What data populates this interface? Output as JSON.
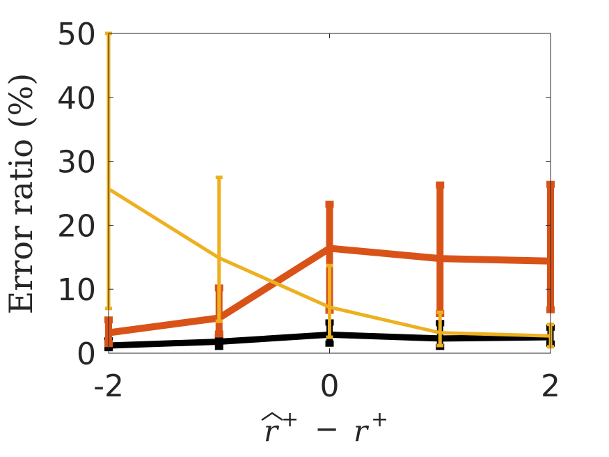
{
  "chart_data": {
    "type": "line",
    "title": "",
    "xlabel": "r̂⁺ − r⁺",
    "xlabel_parts": {
      "hat_var": "r",
      "sup": "+",
      "op": "−",
      "var": "r"
    },
    "ylabel": "Error ratio (%)",
    "xlim": [
      -2,
      2
    ],
    "ylim": [
      0,
      50
    ],
    "xticks": [
      -2,
      0,
      2
    ],
    "xtick_labels": [
      "-2",
      "0",
      "2"
    ],
    "yticks": [
      0,
      10,
      20,
      30,
      40,
      50
    ],
    "ytick_labels": [
      "0",
      "10",
      "20",
      "30",
      "40",
      "50"
    ],
    "grid": false,
    "x": [
      -2,
      -1,
      0,
      1,
      2
    ],
    "series": [
      {
        "color": "#000000",
        "values": [
          1.2,
          1.8,
          2.9,
          2.3,
          2.5
        ],
        "err_low": [
          0.8,
          1.0,
          1.5,
          1.0,
          1.5
        ],
        "err_high": [
          2.0,
          2.5,
          4.8,
          4.7,
          4.0
        ],
        "line_width": 9
      },
      {
        "color": "#D95319",
        "values": [
          3.2,
          5.5,
          16.4,
          14.8,
          14.4
        ],
        "err_low": [
          1.5,
          3.0,
          6.7,
          6.2,
          6.8
        ],
        "err_high": [
          5.2,
          10.2,
          23.3,
          26.3,
          26.4
        ],
        "line_width": 10
      },
      {
        "color": "#EDB120",
        "values": [
          25.7,
          14.9,
          7.2,
          3.2,
          2.7
        ],
        "err_low": [
          7.0,
          5.0,
          2.5,
          1.2,
          1.0
        ],
        "err_high": [
          50.0,
          27.5,
          13.7,
          6.4,
          4.5
        ],
        "line_width": 5
      }
    ]
  }
}
